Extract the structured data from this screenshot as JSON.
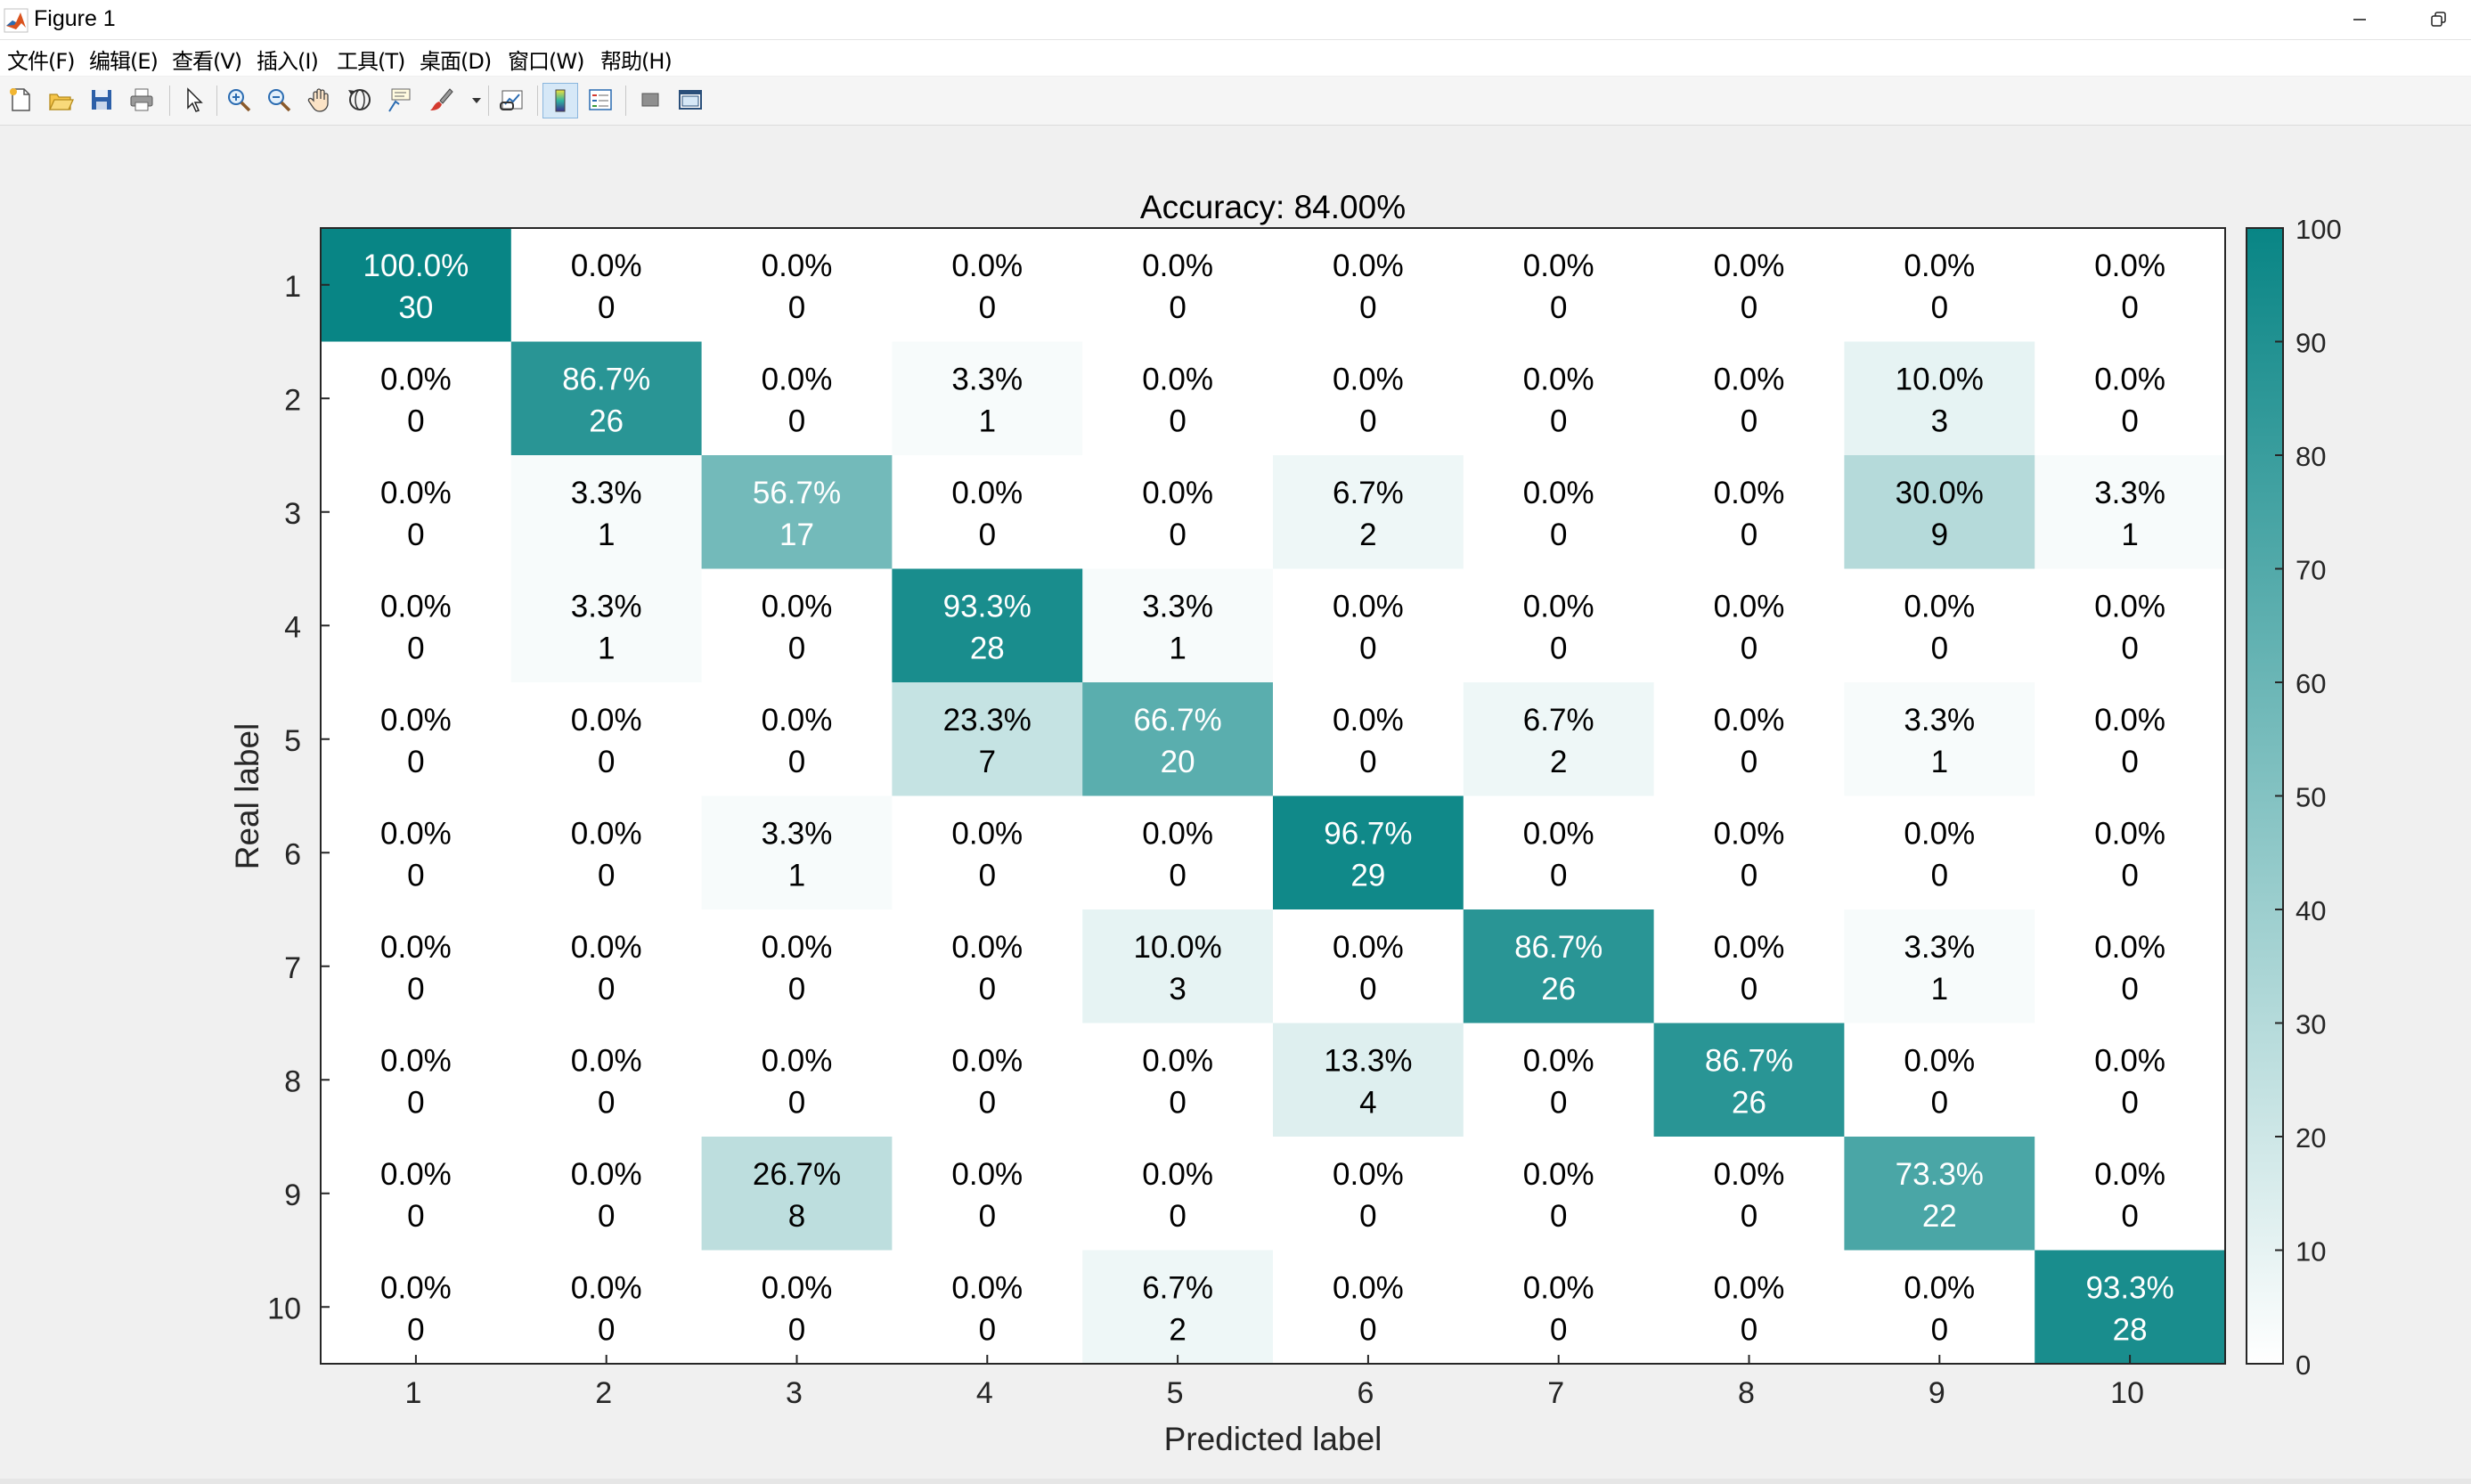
{
  "window": {
    "title": "Figure 1",
    "minimize_icon": "minimize-icon",
    "restore_icon": "restore-icon"
  },
  "menubar": {
    "items": [
      {
        "label": "文件(F)"
      },
      {
        "label": "编辑(E)"
      },
      {
        "label": "查看(V)"
      },
      {
        "label": "插入(I)"
      },
      {
        "label": "工具(T)"
      },
      {
        "label": "桌面(D)"
      },
      {
        "label": "窗口(W)"
      },
      {
        "label": "帮助(H)"
      }
    ]
  },
  "toolbar": {
    "buttons": [
      {
        "icon": "new-figure-icon"
      },
      {
        "icon": "open-file-icon"
      },
      {
        "icon": "save-icon"
      },
      {
        "icon": "print-icon"
      },
      {
        "icon": "pointer-icon"
      },
      {
        "icon": "zoom-in-icon"
      },
      {
        "icon": "zoom-out-icon"
      },
      {
        "icon": "pan-hand-icon"
      },
      {
        "icon": "rotate-3d-icon"
      },
      {
        "icon": "data-cursor-icon"
      },
      {
        "icon": "brush-icon"
      },
      {
        "icon": "link-plot-icon"
      },
      {
        "icon": "colorbar-icon"
      },
      {
        "icon": "legend-icon"
      },
      {
        "icon": "hide-plot-tools-icon"
      },
      {
        "icon": "show-plot-tools-icon"
      }
    ]
  },
  "colors": {
    "high": "#088585",
    "low": "#ffffff",
    "text_dark": "#000000",
    "text_light": "#ffffff"
  },
  "chart_data": {
    "type": "heatmap",
    "title": "Accuracy: 84.00%",
    "xlabel": "Predicted label",
    "ylabel": "Real label",
    "x_categories": [
      "1",
      "2",
      "3",
      "4",
      "5",
      "6",
      "7",
      "8",
      "9",
      "10"
    ],
    "y_categories": [
      "1",
      "2",
      "3",
      "4",
      "5",
      "6",
      "7",
      "8",
      "9",
      "10"
    ],
    "counts": [
      [
        30,
        0,
        0,
        0,
        0,
        0,
        0,
        0,
        0,
        0
      ],
      [
        0,
        26,
        0,
        1,
        0,
        0,
        0,
        0,
        3,
        0
      ],
      [
        0,
        1,
        17,
        0,
        0,
        2,
        0,
        0,
        9,
        1
      ],
      [
        0,
        1,
        0,
        28,
        1,
        0,
        0,
        0,
        0,
        0
      ],
      [
        0,
        0,
        0,
        7,
        20,
        0,
        2,
        0,
        1,
        0
      ],
      [
        0,
        0,
        1,
        0,
        0,
        29,
        0,
        0,
        0,
        0
      ],
      [
        0,
        0,
        0,
        0,
        3,
        0,
        26,
        0,
        1,
        0
      ],
      [
        0,
        0,
        0,
        0,
        0,
        4,
        0,
        26,
        0,
        0
      ],
      [
        0,
        0,
        8,
        0,
        0,
        0,
        0,
        0,
        22,
        0
      ],
      [
        0,
        0,
        0,
        0,
        2,
        0,
        0,
        0,
        0,
        28
      ]
    ],
    "percentages": [
      [
        "100.0%",
        "0.0%",
        "0.0%",
        "0.0%",
        "0.0%",
        "0.0%",
        "0.0%",
        "0.0%",
        "0.0%",
        "0.0%"
      ],
      [
        "0.0%",
        "86.7%",
        "0.0%",
        "3.3%",
        "0.0%",
        "0.0%",
        "0.0%",
        "0.0%",
        "10.0%",
        "0.0%"
      ],
      [
        "0.0%",
        "3.3%",
        "56.7%",
        "0.0%",
        "0.0%",
        "6.7%",
        "0.0%",
        "0.0%",
        "30.0%",
        "3.3%"
      ],
      [
        "0.0%",
        "3.3%",
        "0.0%",
        "93.3%",
        "3.3%",
        "0.0%",
        "0.0%",
        "0.0%",
        "0.0%",
        "0.0%"
      ],
      [
        "0.0%",
        "0.0%",
        "0.0%",
        "23.3%",
        "66.7%",
        "0.0%",
        "6.7%",
        "0.0%",
        "3.3%",
        "0.0%"
      ],
      [
        "0.0%",
        "0.0%",
        "3.3%",
        "0.0%",
        "0.0%",
        "96.7%",
        "0.0%",
        "0.0%",
        "0.0%",
        "0.0%"
      ],
      [
        "0.0%",
        "0.0%",
        "0.0%",
        "0.0%",
        "10.0%",
        "0.0%",
        "86.7%",
        "0.0%",
        "3.3%",
        "0.0%"
      ],
      [
        "0.0%",
        "0.0%",
        "0.0%",
        "0.0%",
        "0.0%",
        "13.3%",
        "0.0%",
        "86.7%",
        "0.0%",
        "0.0%"
      ],
      [
        "0.0%",
        "0.0%",
        "26.7%",
        "0.0%",
        "0.0%",
        "0.0%",
        "0.0%",
        "0.0%",
        "73.3%",
        "0.0%"
      ],
      [
        "0.0%",
        "0.0%",
        "0.0%",
        "0.0%",
        "6.7%",
        "0.0%",
        "0.0%",
        "0.0%",
        "0.0%",
        "93.3%"
      ]
    ],
    "percent_values": [
      [
        100.0,
        0,
        0,
        0,
        0,
        0,
        0,
        0,
        0,
        0
      ],
      [
        0,
        86.7,
        0,
        3.3,
        0,
        0,
        0,
        0,
        10.0,
        0
      ],
      [
        0,
        3.3,
        56.7,
        0,
        0,
        6.7,
        0,
        0,
        30.0,
        3.3
      ],
      [
        0,
        3.3,
        0,
        93.3,
        3.3,
        0,
        0,
        0,
        0,
        0
      ],
      [
        0,
        0,
        0,
        23.3,
        66.7,
        0,
        6.7,
        0,
        3.3,
        0
      ],
      [
        0,
        0,
        3.3,
        0,
        0,
        96.7,
        0,
        0,
        0,
        0
      ],
      [
        0,
        0,
        0,
        0,
        10.0,
        0,
        86.7,
        0,
        3.3,
        0
      ],
      [
        0,
        0,
        0,
        0,
        0,
        13.3,
        0,
        86.7,
        0,
        0
      ],
      [
        0,
        0,
        26.7,
        0,
        0,
        0,
        0,
        0,
        73.3,
        0
      ],
      [
        0,
        0,
        0,
        0,
        6.7,
        0,
        0,
        0,
        0,
        93.3
      ]
    ],
    "colorbar": {
      "range": [
        0,
        100
      ],
      "ticks": [
        "0",
        "10",
        "20",
        "30",
        "40",
        "50",
        "60",
        "70",
        "80",
        "90",
        "100"
      ]
    }
  }
}
